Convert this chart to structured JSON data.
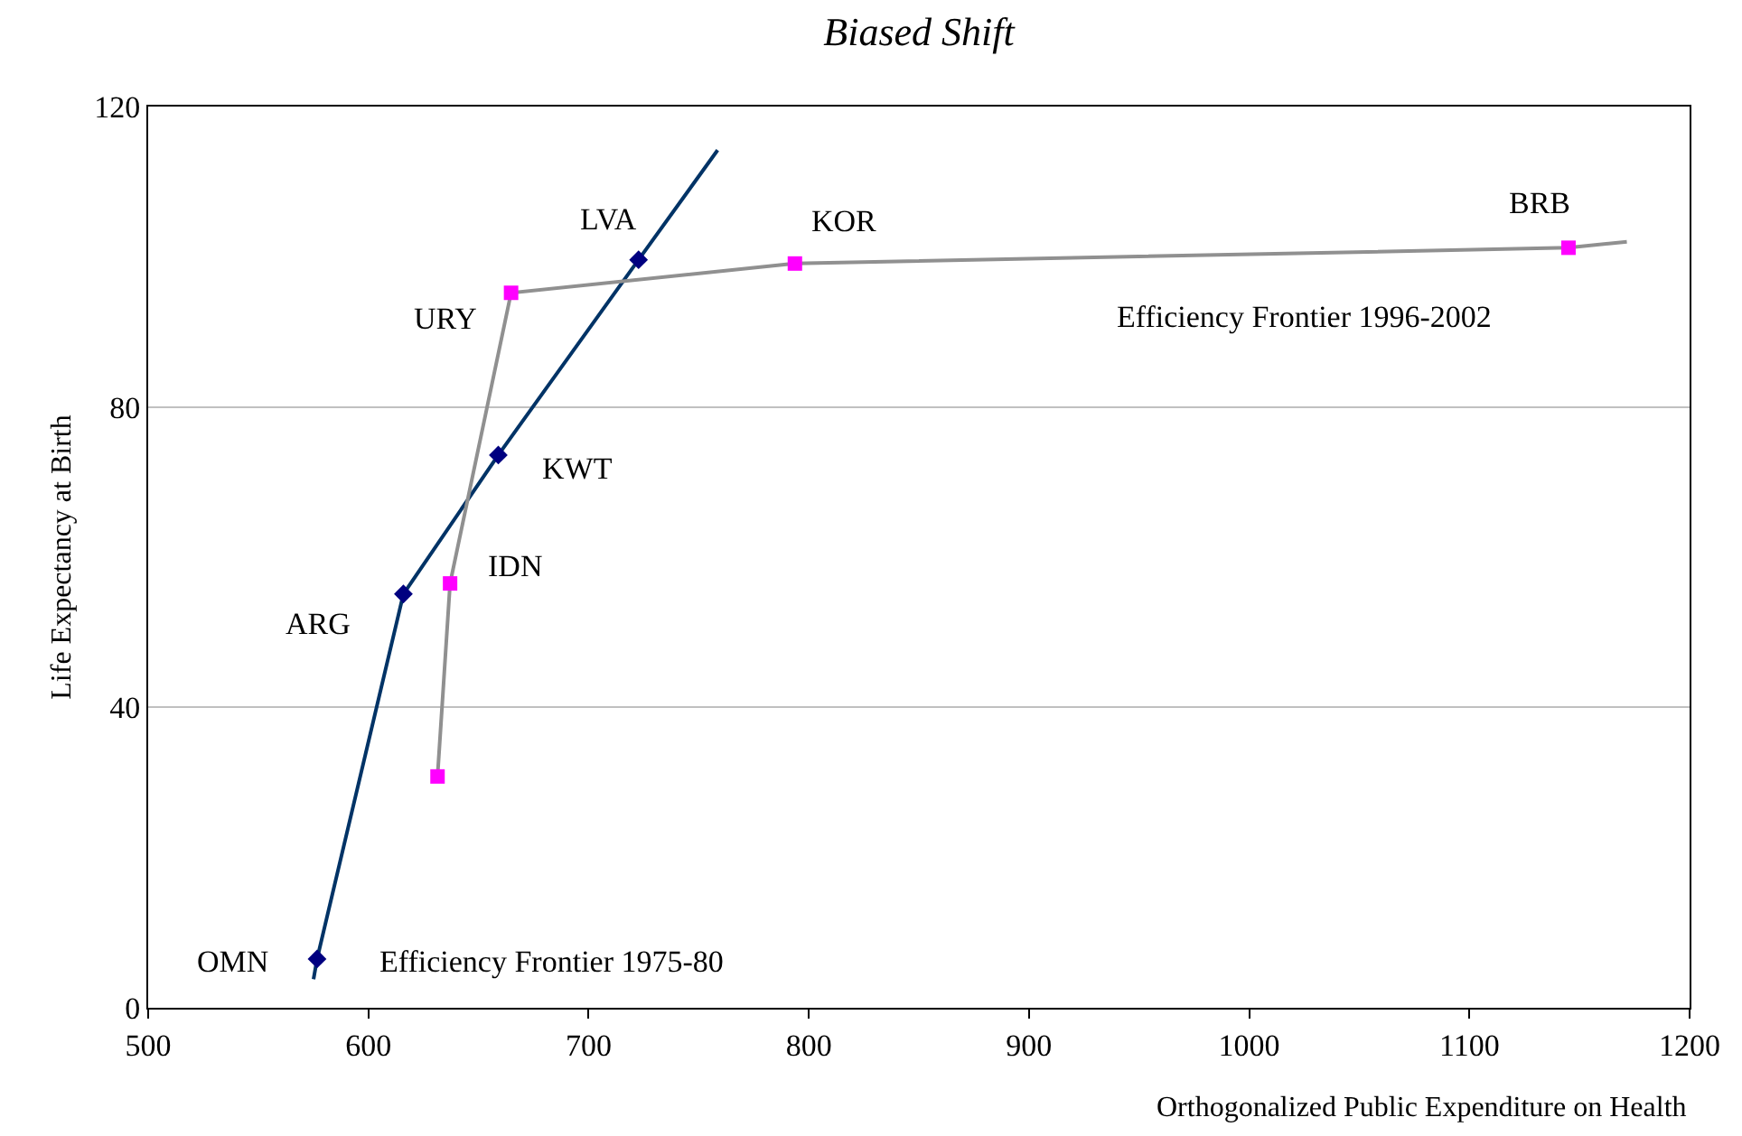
{
  "chart_data": {
    "type": "line",
    "title": "Biased Shift",
    "xlabel": "Orthogonalized Public Expenditure on Health",
    "ylabel": "Life Expectancy at Birth",
    "xlim": [
      500,
      1200
    ],
    "xticks": [
      500,
      600,
      700,
      800,
      900,
      1000,
      1100,
      1200
    ],
    "ylim": [
      0,
      120
    ],
    "yticks": [
      0,
      40,
      80,
      120
    ],
    "grid": "y",
    "series": [
      {
        "marker": "none",
        "color": "#003366",
        "x": [
          575.1,
          576.7,
          615.9,
          659,
          722.7,
          758.6
        ],
        "values": [
          3.8,
          6.5,
          55.1,
          73.6,
          99.6,
          114.2
        ]
      },
      {
        "type": "scatter",
        "marker": "diamond",
        "color": "#000080",
        "x": [
          576.7,
          615.9,
          659,
          722.7
        ],
        "values": [
          6.5,
          55.1,
          73.6,
          99.6
        ]
      },
      {
        "marker": "none",
        "color": "#909090",
        "x": [
          631.4,
          637.1,
          664.8,
          793.7,
          1145,
          1171.5
        ],
        "values": [
          30.8,
          56.5,
          95.2,
          99.1,
          101.2,
          102
        ]
      },
      {
        "type": "scatter",
        "marker": "square",
        "color": "#ff00ff",
        "x": [
          631.4,
          637.1,
          664.8,
          793.7,
          1145
        ],
        "values": [
          30.8,
          56.5,
          95.2,
          99.1,
          101.2
        ]
      }
    ],
    "annotations": [
      {
        "text": "OMN",
        "x": 576.7,
        "y": 6.5
      },
      {
        "text": "ARG",
        "x": 615.9,
        "y": 55.1
      },
      {
        "text": "KWT",
        "x": 659,
        "y": 73.6
      },
      {
        "text": "LVA",
        "x": 722.7,
        "y": 99.6
      },
      {
        "text": "URY",
        "x": 664.8,
        "y": 95.2
      },
      {
        "text": "IDN",
        "x": 637.1,
        "y": 56.5
      },
      {
        "text": "KOR",
        "x": 793.7,
        "y": 99.1
      },
      {
        "text": "BRB",
        "x": 1145,
        "y": 101.2
      },
      {
        "text": "Efficiency Frontier 1975-80",
        "x": 576.7,
        "y": 6.5
      },
      "Efficiency Frontier 1996-2002"
    ]
  }
}
